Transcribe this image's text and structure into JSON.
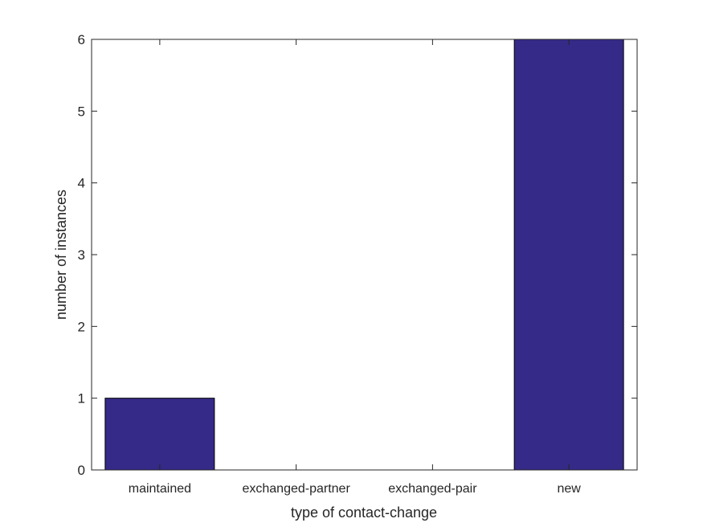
{
  "chart_data": {
    "type": "bar",
    "categories": [
      "maintained",
      "exchanged-partner",
      "exchanged-pair",
      "new"
    ],
    "values": [
      1,
      0,
      0,
      6
    ],
    "xlabel": "type of contact-change",
    "ylabel": "number of instances",
    "ylim": [
      0,
      6
    ],
    "yticks": [
      0,
      1,
      2,
      3,
      4,
      5,
      6
    ],
    "grid": false,
    "bar_color": "#352a87"
  }
}
